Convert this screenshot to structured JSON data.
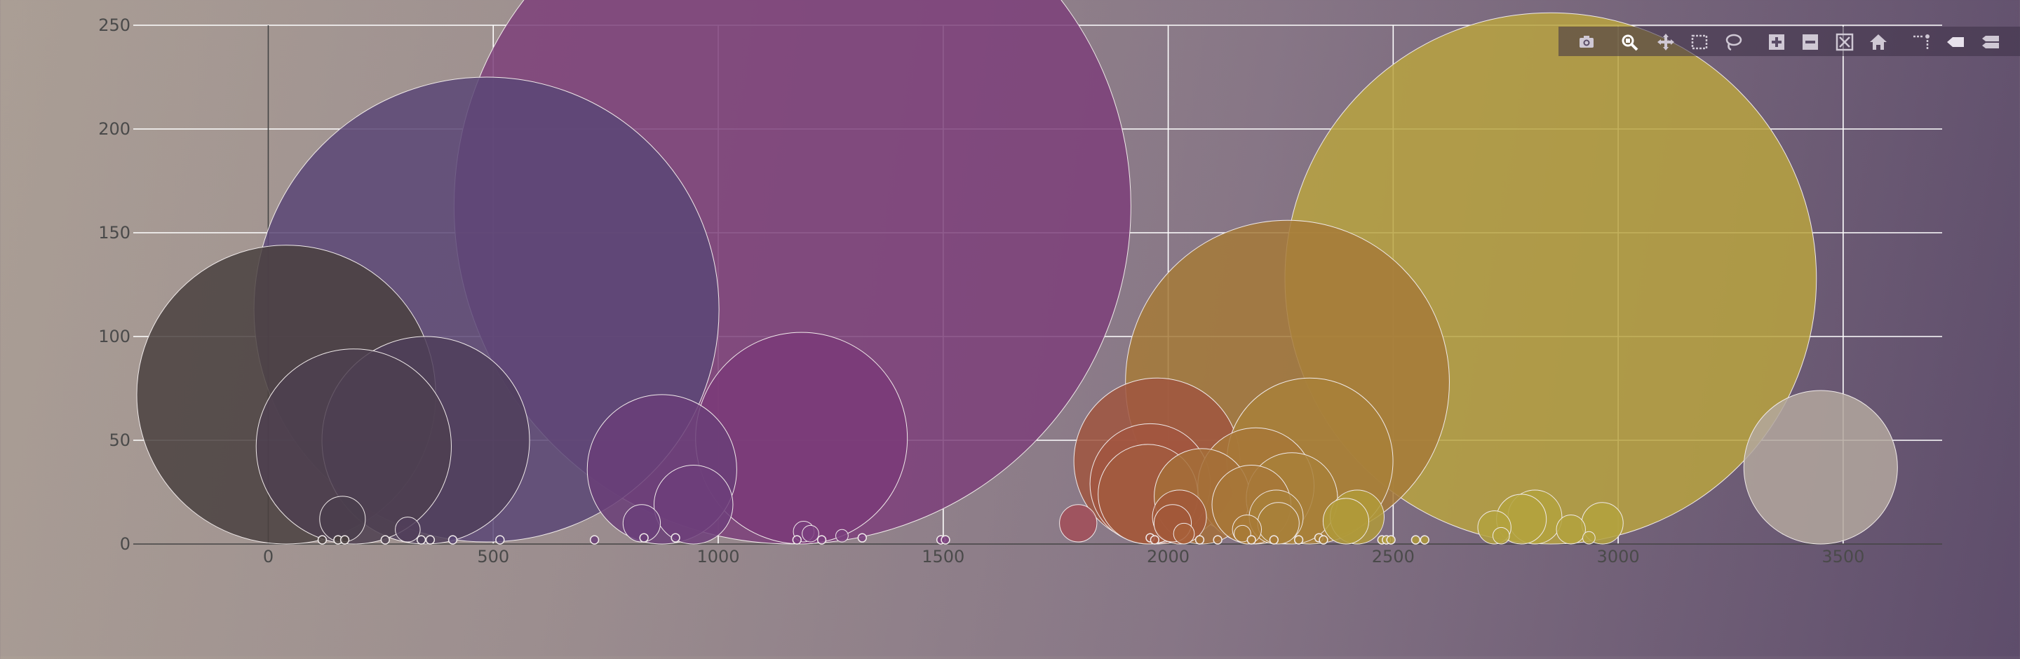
{
  "chart_data": {
    "type": "scatter",
    "variant": "bubble",
    "title": "",
    "xlabel": "",
    "ylabel": "",
    "xlim": [
      -300,
      3720
    ],
    "ylim": [
      0,
      250
    ],
    "x_ticks": [
      0,
      500,
      1000,
      1500,
      2000,
      2500,
      3000,
      3500
    ],
    "y_ticks": [
      0,
      50,
      100,
      150,
      200,
      250
    ],
    "grid": true,
    "legend": "none",
    "points": [
      {
        "x": 40,
        "y": 72,
        "r": 72,
        "color": "#4a413f"
      },
      {
        "x": 190,
        "y": 47,
        "r": 47,
        "color": "#4d3f50"
      },
      {
        "x": 350,
        "y": 50,
        "r": 50,
        "color": "#4f3e5a"
      },
      {
        "x": 485,
        "y": 113,
        "r": 112,
        "color": "#5a4675"
      },
      {
        "x": 1165,
        "y": 163,
        "r": 163,
        "color": "#7d3f7a"
      },
      {
        "x": 1185,
        "y": 51,
        "r": 51,
        "color": "#7a3a78"
      },
      {
        "x": 875,
        "y": 36,
        "r": 36,
        "color": "#6a3e78"
      },
      {
        "x": 945,
        "y": 19,
        "r": 19,
        "color": "#6d3e7a"
      },
      {
        "x": 165,
        "y": 12,
        "r": 11,
        "color": "#4a3e4c"
      },
      {
        "x": 310,
        "y": 7,
        "r": 6,
        "color": "#513e5a"
      },
      {
        "x": 830,
        "y": 10,
        "r": 9,
        "color": "#6a3e7a"
      },
      {
        "x": 1190,
        "y": 6,
        "r": 5,
        "color": "#7a3e7e"
      },
      {
        "x": 1205,
        "y": 5,
        "r": 4,
        "color": "#7a3e7e"
      },
      {
        "x": 1275,
        "y": 4,
        "r": 3,
        "color": "#7a3e7e"
      },
      {
        "x": 1800,
        "y": 10,
        "r": 9,
        "color": "#a24e58"
      },
      {
        "x": 1975,
        "y": 40,
        "r": 40,
        "color": "#a0563f"
      },
      {
        "x": 1960,
        "y": 29,
        "r": 29,
        "color": "#a2563f"
      },
      {
        "x": 1955,
        "y": 24,
        "r": 24,
        "color": "#a25a3f"
      },
      {
        "x": 2025,
        "y": 13,
        "r": 13,
        "color": "#a2583a"
      },
      {
        "x": 2010,
        "y": 10,
        "r": 9,
        "color": "#a2583a"
      },
      {
        "x": 2035,
        "y": 5,
        "r": 5,
        "color": "#a8603a"
      },
      {
        "x": 2075,
        "y": 23,
        "r": 23,
        "color": "#a46f38"
      },
      {
        "x": 2195,
        "y": 28,
        "r": 28,
        "color": "#a77738"
      },
      {
        "x": 2185,
        "y": 19,
        "r": 19,
        "color": "#a77738"
      },
      {
        "x": 2175,
        "y": 7,
        "r": 7,
        "color": "#a87a36"
      },
      {
        "x": 2165,
        "y": 5,
        "r": 4,
        "color": "#a87a36"
      },
      {
        "x": 2265,
        "y": 78,
        "r": 78,
        "color": "#a67a38"
      },
      {
        "x": 2315,
        "y": 40,
        "r": 40,
        "color": "#a8803a"
      },
      {
        "x": 2275,
        "y": 22,
        "r": 22,
        "color": "#a8803a"
      },
      {
        "x": 2240,
        "y": 13,
        "r": 13,
        "color": "#a8803a"
      },
      {
        "x": 2245,
        "y": 10,
        "r": 10,
        "color": "#a8803a"
      },
      {
        "x": 2395,
        "y": 11,
        "r": 11,
        "color": "#b09a3a"
      },
      {
        "x": 2420,
        "y": 13,
        "r": 13,
        "color": "#b09a3a"
      },
      {
        "x": 2850,
        "y": 128,
        "r": 128,
        "color": "#b9a33f"
      },
      {
        "x": 2725,
        "y": 8,
        "r": 8,
        "color": "#b3a23e"
      },
      {
        "x": 2740,
        "y": 4,
        "r": 4,
        "color": "#b3a23e"
      },
      {
        "x": 2785,
        "y": 12,
        "r": 12,
        "color": "#b3a23e"
      },
      {
        "x": 2815,
        "y": 13,
        "r": 13,
        "color": "#b3a23e"
      },
      {
        "x": 2895,
        "y": 7,
        "r": 7,
        "color": "#b3a23e"
      },
      {
        "x": 2965,
        "y": 10,
        "r": 10,
        "color": "#b3a23e"
      },
      {
        "x": 2935,
        "y": 3,
        "r": 3,
        "color": "#b3a23e"
      },
      {
        "x": 3450,
        "y": 37,
        "r": 37,
        "color": "#b3a79d"
      },
      {
        "x": 120,
        "y": 2,
        "r": 2,
        "color": "#4a413f"
      },
      {
        "x": 155,
        "y": 2,
        "r": 2,
        "color": "#4a413f"
      },
      {
        "x": 170,
        "y": 2,
        "r": 2,
        "color": "#4a413f"
      },
      {
        "x": 260,
        "y": 2,
        "r": 2,
        "color": "#4d3f50"
      },
      {
        "x": 340,
        "y": 2,
        "r": 2,
        "color": "#4f3e5a"
      },
      {
        "x": 360,
        "y": 2,
        "r": 2,
        "color": "#4f3e5a"
      },
      {
        "x": 410,
        "y": 2,
        "r": 2,
        "color": "#5a4675"
      },
      {
        "x": 515,
        "y": 2,
        "r": 2,
        "color": "#5a4675"
      },
      {
        "x": 725,
        "y": 2,
        "r": 2,
        "color": "#6a3e78"
      },
      {
        "x": 835,
        "y": 3,
        "r": 2,
        "color": "#6a3e78"
      },
      {
        "x": 905,
        "y": 3,
        "r": 2,
        "color": "#6d3e7a"
      },
      {
        "x": 1175,
        "y": 2,
        "r": 2,
        "color": "#7a3e7e"
      },
      {
        "x": 1230,
        "y": 2,
        "r": 2,
        "color": "#7a3e7e"
      },
      {
        "x": 1320,
        "y": 3,
        "r": 2,
        "color": "#7a3e7e"
      },
      {
        "x": 1495,
        "y": 2,
        "r": 2,
        "color": "#7a3e7e"
      },
      {
        "x": 1505,
        "y": 2,
        "r": 2,
        "color": "#7a3e7e"
      },
      {
        "x": 1960,
        "y": 3,
        "r": 2,
        "color": "#a2563f"
      },
      {
        "x": 1970,
        "y": 2,
        "r": 2,
        "color": "#a2563f"
      },
      {
        "x": 2070,
        "y": 2,
        "r": 2,
        "color": "#a46f38"
      },
      {
        "x": 2110,
        "y": 2,
        "r": 2,
        "color": "#a46f38"
      },
      {
        "x": 2185,
        "y": 2,
        "r": 2,
        "color": "#a87a36"
      },
      {
        "x": 2235,
        "y": 2,
        "r": 2,
        "color": "#a87a36"
      },
      {
        "x": 2290,
        "y": 2,
        "r": 2,
        "color": "#a8803a"
      },
      {
        "x": 2335,
        "y": 3,
        "r": 2,
        "color": "#a8803a"
      },
      {
        "x": 2345,
        "y": 2,
        "r": 2,
        "color": "#a8803a"
      },
      {
        "x": 2475,
        "y": 2,
        "r": 2,
        "color": "#b09a3a"
      },
      {
        "x": 2485,
        "y": 2,
        "r": 2,
        "color": "#b09a3a"
      },
      {
        "x": 2495,
        "y": 2,
        "r": 2,
        "color": "#b09a3a"
      },
      {
        "x": 2550,
        "y": 2,
        "r": 2,
        "color": "#b09a3a"
      },
      {
        "x": 2570,
        "y": 2,
        "r": 2,
        "color": "#b09a3a"
      }
    ]
  },
  "modebar": {
    "buttons": [
      {
        "name": "camera-icon",
        "tooltip": "Download plot as a png"
      },
      {
        "name": "zoom-icon",
        "tooltip": "Zoom"
      },
      {
        "name": "pan-icon",
        "tooltip": "Pan"
      },
      {
        "name": "box-select-icon",
        "tooltip": "Box Select"
      },
      {
        "name": "lasso-select-icon",
        "tooltip": "Lasso Select"
      },
      {
        "name": "zoom-in-icon",
        "tooltip": "Zoom in"
      },
      {
        "name": "zoom-out-icon",
        "tooltip": "Zoom out"
      },
      {
        "name": "autoscale-icon",
        "tooltip": "Autoscale"
      },
      {
        "name": "reset-axes-icon",
        "tooltip": "Reset axes"
      },
      {
        "name": "spike-lines-icon",
        "tooltip": "Toggle Spike Lines"
      },
      {
        "name": "hover-closest-icon",
        "tooltip": "Show closest data on hover"
      },
      {
        "name": "hover-compare-icon",
        "tooltip": "Compare data on hover"
      }
    ]
  }
}
